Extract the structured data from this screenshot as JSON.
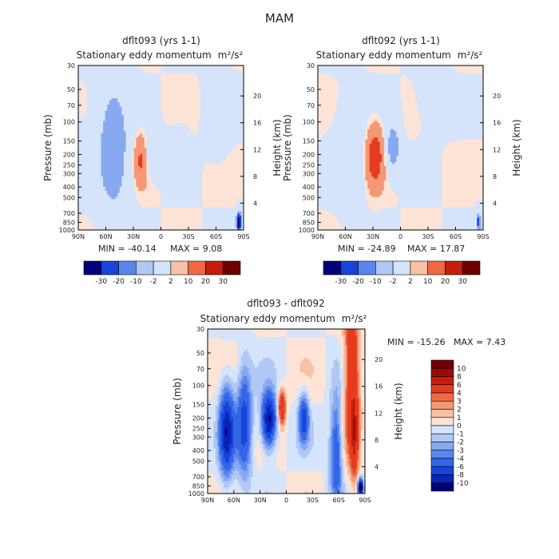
{
  "page_title": "MAM",
  "x_ticks": [
    "90N",
    "60N",
    "30N",
    "0",
    "30S",
    "60S",
    "90S"
  ],
  "p_ticks": [
    "30",
    "50",
    "70",
    "100",
    "150",
    "200",
    "250",
    "300",
    "400",
    "500",
    "700",
    "850",
    "1000"
  ],
  "p_values": [
    30,
    50,
    70,
    100,
    150,
    200,
    250,
    300,
    400,
    500,
    700,
    850,
    1000
  ],
  "h_ticks": [
    "4",
    "8",
    "12",
    "16",
    "20"
  ],
  "h_values": [
    4,
    8,
    12,
    16,
    20
  ],
  "y_label": "Pressure (mb)",
  "y2_label": "Height (km)",
  "colors": {
    "neg": [
      "#00007a",
      "#0a23b8",
      "#1644dc",
      "#3366e6",
      "#5b86ee",
      "#87a9f0",
      "#b1c8f5",
      "#d5e4fa"
    ],
    "pos": [
      "#fde4d6",
      "#f9c1a5",
      "#f49876",
      "#ef6a44",
      "#e53c20",
      "#c51d0c",
      "#9b0a05",
      "#6e0000"
    ]
  },
  "chart_data": [
    {
      "id": "dflt093",
      "type": "heatmap",
      "title": "dflt093 (yrs 1-1)",
      "subtitle": "Stationary eddy momentum",
      "units": "m²/s²",
      "min_label": "MIN = -40.14",
      "max_label": "MAX =   9.08",
      "min": -40.14,
      "max": 9.08,
      "xlim": [
        90,
        -90
      ],
      "ylim": [
        1000,
        30
      ],
      "levels": [
        -30,
        -20,
        -10,
        -2,
        2,
        10,
        20,
        30
      ],
      "colorbar_labels": [
        "-30",
        "-20",
        "-10",
        "-2",
        "2",
        "10",
        "20",
        "30"
      ],
      "features": [
        {
          "lat": 52,
          "p": 170,
          "amp": -18,
          "slat": 12,
          "sp": 1.0
        },
        {
          "lat": 22,
          "p": 220,
          "amp": 12,
          "slat": 5,
          "sp": 0.35
        },
        {
          "lat": 8,
          "p": 190,
          "amp": -9,
          "slat": 7,
          "sp": 0.3
        },
        {
          "lat": -20,
          "p": 200,
          "amp": -6,
          "slat": 7,
          "sp": 0.35
        },
        {
          "lat": -62,
          "p": 80,
          "amp": -6,
          "slat": 8,
          "sp": 0.6
        },
        {
          "lat": -85,
          "p": 850,
          "amp": -40,
          "slat": 2,
          "sp": 0.15
        }
      ]
    },
    {
      "id": "dflt092",
      "type": "heatmap",
      "title": "dflt092 (yrs 1-1)",
      "subtitle": "Stationary eddy momentum",
      "units": "m²/s²",
      "min_label": "MIN = -24.89",
      "max_label": "MAX =  17.87",
      "min": -24.89,
      "max": 17.87,
      "xlim": [
        90,
        -90
      ],
      "ylim": [
        1000,
        30
      ],
      "levels": [
        -30,
        -20,
        -10,
        -2,
        2,
        10,
        20,
        30
      ],
      "colorbar_labels": [
        "-30",
        "-20",
        "-10",
        "-2",
        "2",
        "10",
        "20",
        "30"
      ],
      "features": [
        {
          "lat": 55,
          "p": 200,
          "amp": -8,
          "slat": 10,
          "sp": 0.8
        },
        {
          "lat": 28,
          "p": 210,
          "amp": 18,
          "slat": 6,
          "sp": 0.4
        },
        {
          "lat": 8,
          "p": 170,
          "amp": -18,
          "slat": 5,
          "sp": 0.35
        },
        {
          "lat": -35,
          "p": 50,
          "amp": -6,
          "slat": 10,
          "sp": 0.5
        },
        {
          "lat": -85,
          "p": 850,
          "amp": -25,
          "slat": 2,
          "sp": 0.15
        }
      ]
    },
    {
      "id": "diff",
      "type": "heatmap",
      "title": "dflt093 - dflt092",
      "subtitle": "Stationary eddy momentum",
      "units": "m²/s²",
      "min_label": "MIN = -15.26",
      "max_label": "MAX =   7.43",
      "min": -15.26,
      "max": 7.43,
      "xlim": [
        90,
        -90
      ],
      "ylim": [
        1000,
        30
      ],
      "levels": [
        -10,
        -8,
        -6,
        -4,
        -3,
        -2,
        -1,
        0,
        1,
        2,
        3,
        4,
        6,
        8,
        10
      ],
      "colorbar_labels": [
        "10",
        "8",
        "6",
        "4",
        "3",
        "2",
        "1",
        "0",
        "-1",
        "-2",
        "-3",
        "-4",
        "-6",
        "-8",
        "-10"
      ],
      "features": [
        {
          "lat": 68,
          "p": 260,
          "amp": -9,
          "slat": 6,
          "sp": 0.7
        },
        {
          "lat": 48,
          "p": 220,
          "amp": -7,
          "slat": 6,
          "sp": 0.8
        },
        {
          "lat": 20,
          "p": 210,
          "amp": -11,
          "slat": 6,
          "sp": 0.4
        },
        {
          "lat": 5,
          "p": 160,
          "amp": 8,
          "slat": 3,
          "sp": 0.25
        },
        {
          "lat": -20,
          "p": 200,
          "amp": -7,
          "slat": 4,
          "sp": 0.35
        },
        {
          "lat": -57,
          "p": 400,
          "amp": -6,
          "slat": 5,
          "sp": 0.8
        },
        {
          "lat": -75,
          "p": 80,
          "amp": 7,
          "slat": 6,
          "sp": 1.2
        },
        {
          "lat": -78,
          "p": 300,
          "amp": 6,
          "slat": 3,
          "sp": 0.6
        },
        {
          "lat": -85,
          "p": 880,
          "amp": -15,
          "slat": 2,
          "sp": 0.12
        }
      ]
    }
  ]
}
